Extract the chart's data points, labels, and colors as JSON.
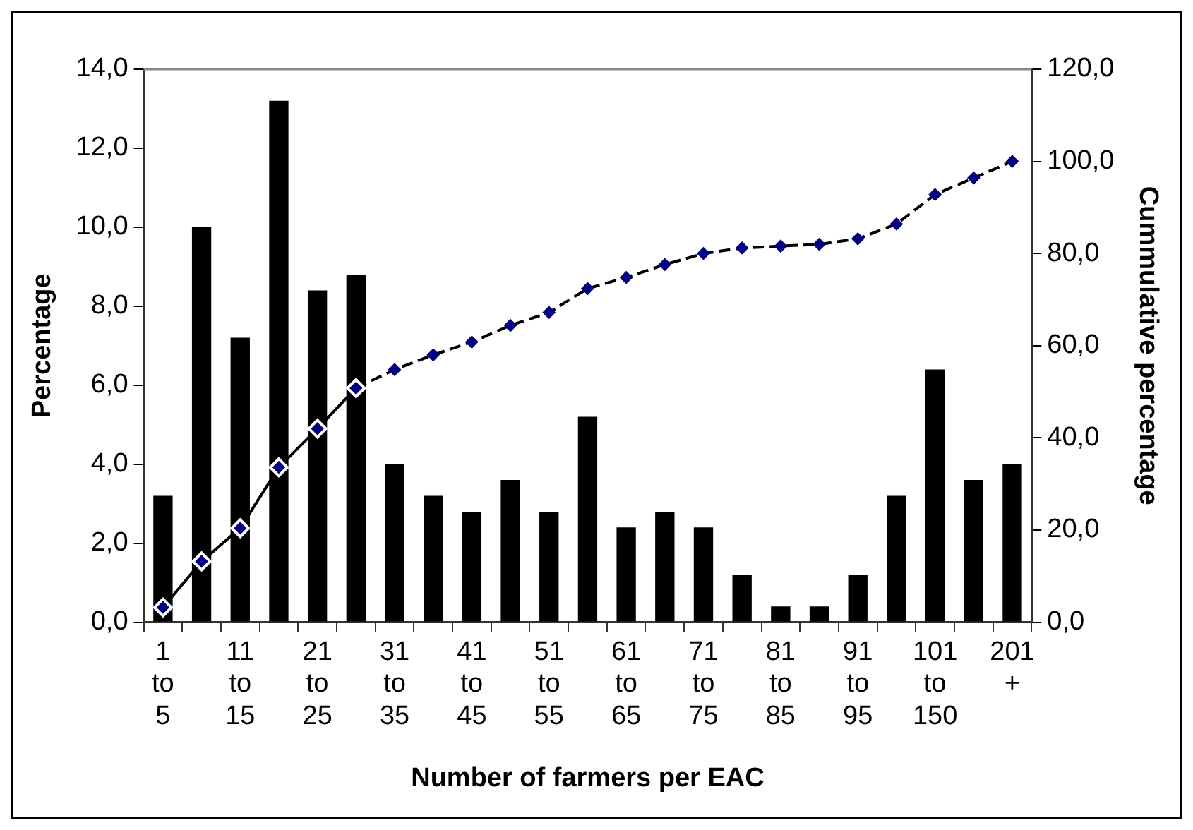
{
  "chart_data": {
    "type": "bar",
    "xlabel": "Number of farmers per EAC",
    "ylabel": "Percentage",
    "y2label": "Cummulative percentage",
    "categories": [
      "1 to 5",
      null,
      "11 to 15",
      null,
      "21 to 25",
      null,
      "31 to 35",
      null,
      "41 to 45",
      null,
      "51 to 55",
      null,
      "61 to 65",
      null,
      "71 to 75",
      null,
      "81 to 85",
      null,
      "91 to 95",
      null,
      "101 to 150",
      null,
      "201 +"
    ],
    "series": [
      {
        "color": "#000000",
        "values": [
          3.2,
          10.0,
          7.2,
          13.2,
          8.4,
          8.8,
          4.0,
          3.2,
          2.8,
          3.6,
          2.8,
          5.2,
          2.4,
          2.8,
          2.4,
          1.2,
          0.4,
          0.4,
          1.2,
          3.2,
          6.4,
          3.6,
          4.0
        ]
      },
      {
        "type": "line",
        "axis": "y2",
        "color": "#000000",
        "line_style": "solid",
        "marker": "diamond",
        "values": [
          3.2,
          13.2,
          20.4,
          33.6,
          42.0,
          50.8,
          null,
          null,
          null,
          null,
          null,
          null,
          null,
          null,
          null,
          null,
          null,
          null,
          null,
          null,
          null,
          null,
          null
        ]
      },
      {
        "type": "line",
        "axis": "y2",
        "color": "#000000",
        "line_style": "dashed",
        "marker": "diamond",
        "values": [
          null,
          null,
          null,
          null,
          null,
          50.8,
          54.8,
          58.0,
          60.8,
          64.4,
          67.2,
          72.4,
          74.8,
          77.6,
          80.0,
          81.2,
          81.6,
          82.0,
          83.2,
          86.4,
          92.8,
          96.4,
          100.0
        ]
      }
    ],
    "ylim": [
      0,
      14
    ],
    "yticks": [
      {
        "value": 0,
        "label": "0,0"
      },
      {
        "value": 2,
        "label": "2,0"
      },
      {
        "value": 4,
        "label": "4,0"
      },
      {
        "value": 6,
        "label": "6,0"
      },
      {
        "value": 8,
        "label": "8,0"
      },
      {
        "value": 10,
        "label": "10,0"
      },
      {
        "value": 12,
        "label": "12,0"
      },
      {
        "value": 14,
        "label": "14,0"
      }
    ],
    "y2lim": [
      0,
      120
    ],
    "y2ticks": [
      {
        "value": 0,
        "label": "0,0"
      },
      {
        "value": 20,
        "label": "20,0"
      },
      {
        "value": 40,
        "label": "40,0"
      },
      {
        "value": 60,
        "label": "60,0"
      },
      {
        "value": 80,
        "label": "80,0"
      },
      {
        "value": 100,
        "label": "100,0"
      },
      {
        "value": 120,
        "label": "120,0"
      }
    ],
    "grid": false,
    "legend": false
  }
}
